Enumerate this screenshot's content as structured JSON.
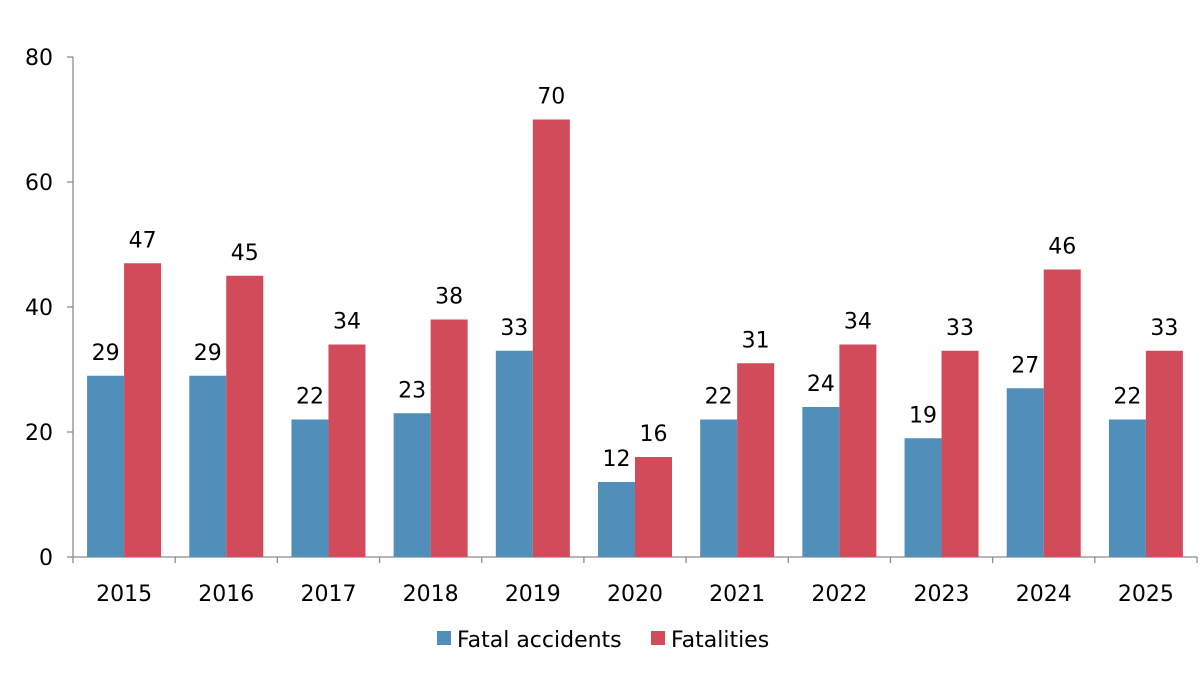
{
  "chart_data": {
    "type": "bar",
    "title": "",
    "xlabel": "",
    "ylabel": "",
    "categories": [
      "2015",
      "2016",
      "2017",
      "2018",
      "2019",
      "2020",
      "2021",
      "2022",
      "2023",
      "2024",
      "2025"
    ],
    "series": [
      {
        "name": "Fatal accidents",
        "color": "#4f8fba",
        "values": [
          29,
          29,
          22,
          23,
          33,
          12,
          22,
          24,
          19,
          27,
          22
        ]
      },
      {
        "name": "Fatalities",
        "color": "#d24b5a",
        "values": [
          47,
          45,
          34,
          38,
          70,
          16,
          31,
          34,
          33,
          46,
          33
        ]
      }
    ],
    "ylim": [
      0,
      80
    ],
    "yticks": [
      0,
      20,
      40,
      60,
      80
    ],
    "grid": false,
    "legend": "bottom"
  }
}
